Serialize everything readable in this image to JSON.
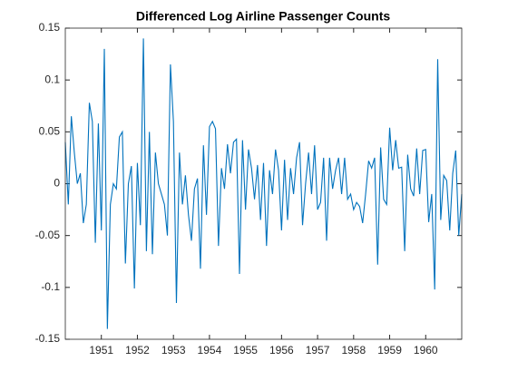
{
  "chart_data": {
    "type": "line",
    "title": "Differenced Log Airline Passenger Counts",
    "x": [
      1950,
      1950.083,
      1950.167,
      1950.25,
      1950.333,
      1950.417,
      1950.5,
      1950.583,
      1950.667,
      1950.75,
      1950.833,
      1950.917,
      1951,
      1951.083,
      1951.167,
      1951.25,
      1951.333,
      1951.417,
      1951.5,
      1951.583,
      1951.667,
      1951.75,
      1951.833,
      1951.917,
      1952,
      1952.083,
      1952.167,
      1952.25,
      1952.333,
      1952.417,
      1952.5,
      1952.583,
      1952.667,
      1952.75,
      1952.833,
      1952.917,
      1953,
      1953.083,
      1953.167,
      1953.25,
      1953.333,
      1953.417,
      1953.5,
      1953.583,
      1953.667,
      1953.75,
      1953.833,
      1953.917,
      1954,
      1954.083,
      1954.167,
      1954.25,
      1954.333,
      1954.417,
      1954.5,
      1954.583,
      1954.667,
      1954.75,
      1954.833,
      1954.917,
      1955,
      1955.083,
      1955.167,
      1955.25,
      1955.333,
      1955.417,
      1955.5,
      1955.583,
      1955.667,
      1955.75,
      1955.833,
      1955.917,
      1956,
      1956.083,
      1956.167,
      1956.25,
      1956.333,
      1956.417,
      1956.5,
      1956.583,
      1956.667,
      1956.75,
      1956.833,
      1956.917,
      1957,
      1957.083,
      1957.167,
      1957.25,
      1957.333,
      1957.417,
      1957.5,
      1957.583,
      1957.667,
      1957.75,
      1957.833,
      1957.917,
      1958,
      1958.083,
      1958.167,
      1958.25,
      1958.333,
      1958.417,
      1958.5,
      1958.583,
      1958.667,
      1958.75,
      1958.833,
      1958.917,
      1959,
      1959.083,
      1959.167,
      1959.25,
      1959.333,
      1959.417,
      1959.5,
      1959.583,
      1959.667,
      1959.75,
      1959.833,
      1959.917,
      1960,
      1960.083,
      1960.167,
      1960.25,
      1960.333,
      1960.417,
      1960.5,
      1960.583,
      1960.667,
      1960.75,
      1960.833,
      1960.917,
      1961
    ],
    "values": [
      0.04,
      -0.02,
      0.065,
      0.03,
      0.0,
      0.01,
      -0.038,
      -0.02,
      0.078,
      0.06,
      -0.057,
      0.058,
      -0.045,
      0.13,
      -0.14,
      -0.02,
      0,
      -0.005,
      0.045,
      0.05,
      -0.077,
      0.0,
      0.017,
      -0.101,
      0.02,
      -0.04,
      0.14,
      -0.065,
      0.05,
      -0.068,
      0.03,
      0,
      -0.01,
      -0.02,
      -0.05,
      0.115,
      0.06,
      -0.115,
      0.03,
      -0.02,
      0.008,
      -0.03,
      -0.055,
      -0.005,
      0.005,
      -0.082,
      0.037,
      -0.03,
      0.055,
      0.06,
      0.053,
      -0.06,
      0.015,
      -0.005,
      0.038,
      0.01,
      0.04,
      0.043,
      -0.087,
      0.042,
      -0.025,
      0.033,
      0.015,
      -0.015,
      0.018,
      -0.035,
      0.02,
      -0.06,
      0.013,
      -0.01,
      0.033,
      0.013,
      -0.045,
      0.023,
      -0.035,
      0.015,
      -0.01,
      0.025,
      0.04,
      -0.04,
      0.0,
      0.03,
      -0.01,
      0.037,
      -0.025,
      -0.018,
      0.025,
      -0.055,
      0.025,
      -0.005,
      0.013,
      0.025,
      -0.01,
      0.025,
      -0.015,
      -0.01,
      -0.025,
      -0.018,
      -0.022,
      -0.038,
      -0.01,
      0.022,
      0.015,
      0.025,
      -0.078,
      0.035,
      -0.015,
      -0.02,
      0.054,
      0.013,
      0.042,
      0.015,
      0.016,
      -0.065,
      0.028,
      -0.005,
      -0.012,
      0.034,
      -0.01,
      0.032,
      0.033,
      -0.037,
      -0.01,
      -0.102,
      0.12,
      -0.035,
      0.008,
      0.003,
      -0.045,
      0.01,
      0.032,
      -0.05,
      -0.01
    ],
    "color": "#0072bd",
    "xlim": [
      1950,
      1961
    ],
    "xticks": [
      1951,
      1952,
      1953,
      1954,
      1955,
      1956,
      1957,
      1958,
      1959,
      1960
    ],
    "ylim": [
      -0.15,
      0.15
    ],
    "yticks": [
      -0.15,
      -0.1,
      -0.05,
      0,
      0.05,
      0.1,
      0.15
    ]
  }
}
